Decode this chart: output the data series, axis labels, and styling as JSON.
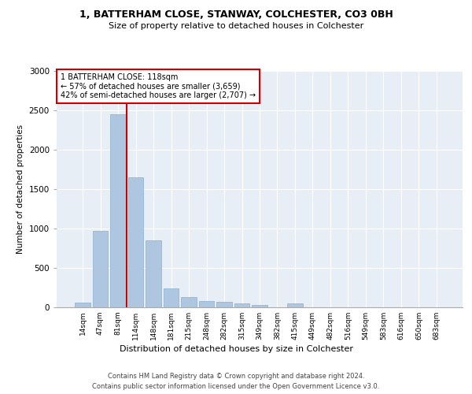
{
  "title1": "1, BATTERHAM CLOSE, STANWAY, COLCHESTER, CO3 0BH",
  "title2": "Size of property relative to detached houses in Colchester",
  "xlabel": "Distribution of detached houses by size in Colchester",
  "ylabel": "Number of detached properties",
  "categories": [
    "14sqm",
    "47sqm",
    "81sqm",
    "114sqm",
    "148sqm",
    "181sqm",
    "215sqm",
    "248sqm",
    "282sqm",
    "315sqm",
    "349sqm",
    "382sqm",
    "415sqm",
    "449sqm",
    "482sqm",
    "516sqm",
    "549sqm",
    "583sqm",
    "616sqm",
    "650sqm",
    "683sqm"
  ],
  "values": [
    60,
    975,
    2450,
    1650,
    850,
    240,
    130,
    85,
    70,
    55,
    30,
    0,
    55,
    0,
    0,
    0,
    0,
    0,
    0,
    0,
    0
  ],
  "bar_color": "#aec6df",
  "bar_edge_color": "#8ab0d0",
  "vline_color": "#cc0000",
  "annotation_text": "1 BATTERHAM CLOSE: 118sqm\n← 57% of detached houses are smaller (3,659)\n42% of semi-detached houses are larger (2,707) →",
  "annotation_box_color": "white",
  "annotation_box_edge": "#cc0000",
  "ylim": [
    0,
    3000
  ],
  "yticks": [
    0,
    500,
    1000,
    1500,
    2000,
    2500,
    3000
  ],
  "plot_bg_color": "#e8eef5",
  "footer1": "Contains HM Land Registry data © Crown copyright and database right 2024.",
  "footer2": "Contains public sector information licensed under the Open Government Licence v3.0."
}
